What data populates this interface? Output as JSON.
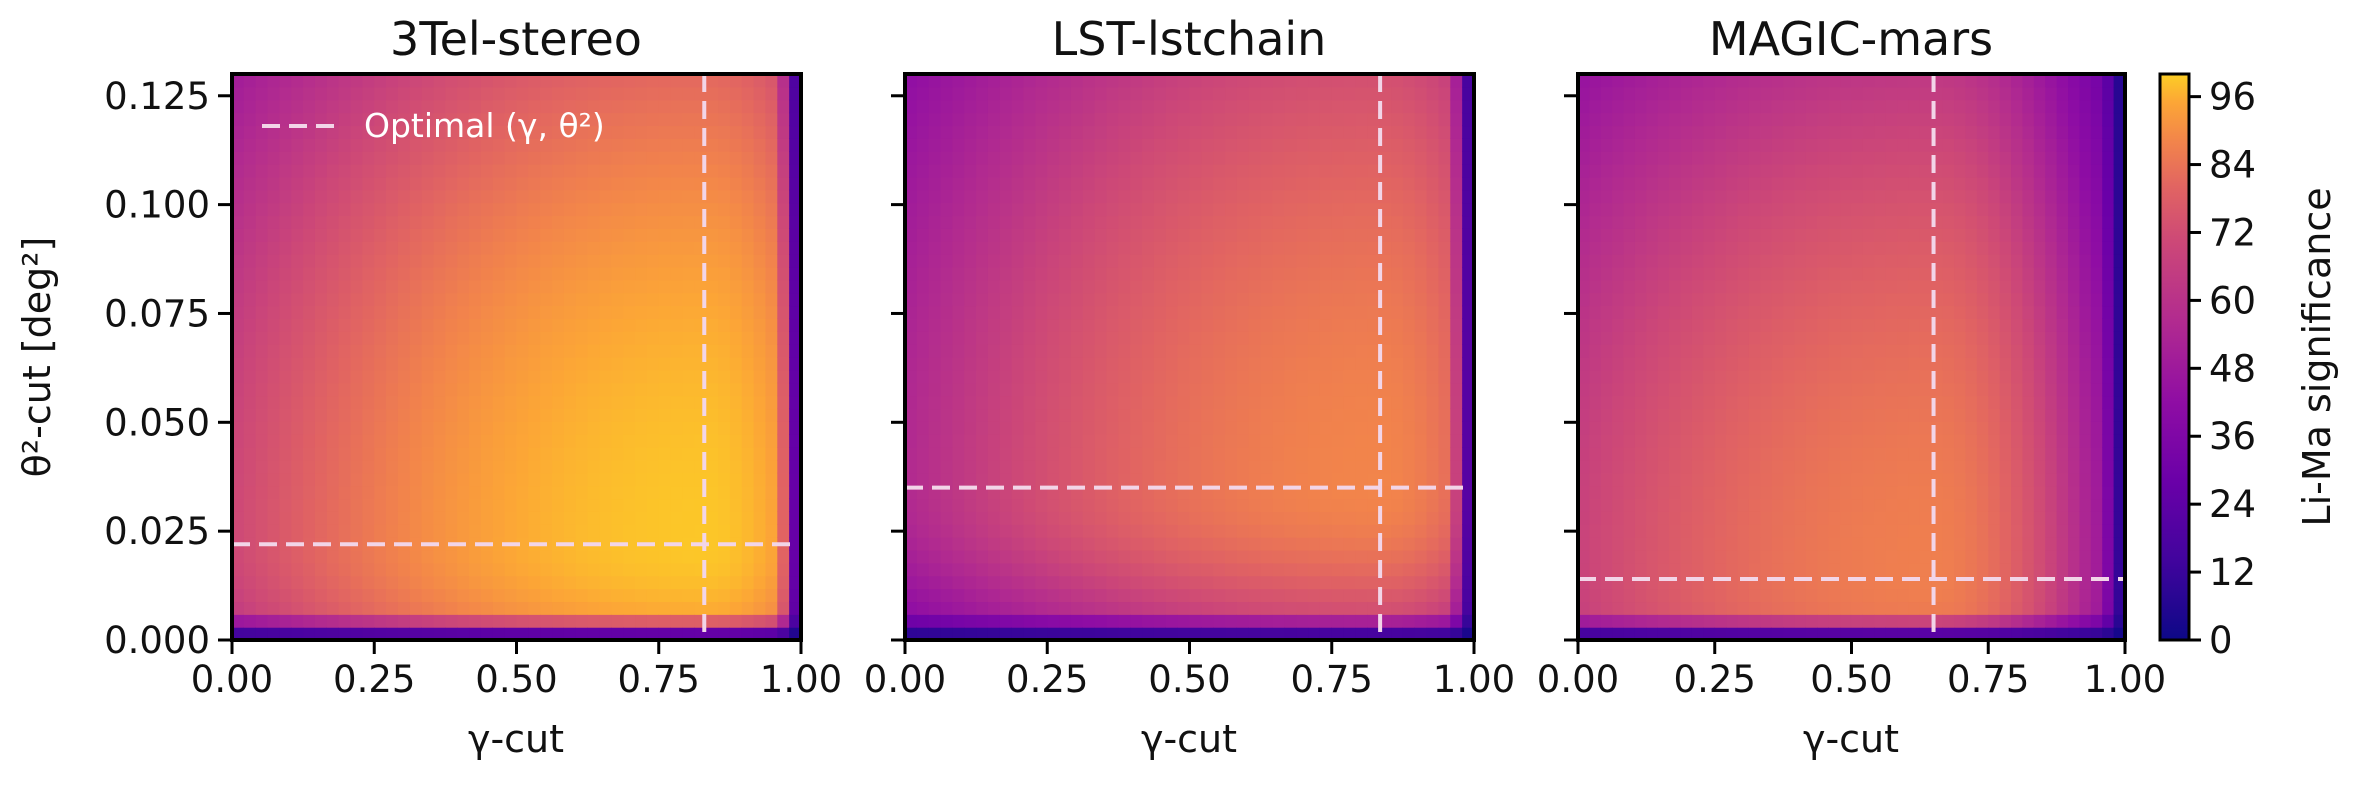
{
  "chart_data": [
    {
      "type": "heatmap",
      "title": "3Tel-stereo",
      "xlabel": "γ-cut",
      "ylabel": "θ²-cut [deg²]",
      "xlim": [
        0,
        1
      ],
      "ylim": [
        0,
        0.13
      ],
      "x_ticks": [
        "0.00",
        "0.25",
        "0.50",
        "0.75",
        "1.00"
      ],
      "y_ticks": [
        "0.000",
        "0.025",
        "0.050",
        "0.075",
        "0.100",
        "0.125"
      ],
      "optimal": {
        "gamma": 0.83,
        "theta2": 0.022
      },
      "peak_significance": 98,
      "legend": {
        "label": "Optimal (γ, θ²)",
        "placement": "top-left"
      }
    },
    {
      "type": "heatmap",
      "title": "LST-lstchain",
      "xlabel": "γ-cut",
      "xlim": [
        0,
        1
      ],
      "ylim": [
        0,
        0.13
      ],
      "x_ticks": [
        "0.00",
        "0.25",
        "0.50",
        "0.75",
        "1.00"
      ],
      "optimal": {
        "gamma": 0.835,
        "theta2": 0.035
      },
      "peak_significance": 78
    },
    {
      "type": "heatmap",
      "title": "MAGIC-mars",
      "xlabel": "γ-cut",
      "xlim": [
        0,
        1
      ],
      "ylim": [
        0,
        0.13
      ],
      "x_ticks": [
        "0.00",
        "0.25",
        "0.50",
        "0.75",
        "1.00"
      ],
      "optimal": {
        "gamma": 0.65,
        "theta2": 0.014
      },
      "peak_significance": 76
    }
  ],
  "colorbar": {
    "label": "Li-Ma significance",
    "range": [
      0,
      100
    ],
    "ticks": [
      "0",
      "12",
      "24",
      "36",
      "48",
      "60",
      "72",
      "84",
      "96"
    ],
    "colormap": "plasma"
  },
  "colors": {
    "optimal_line": "#f2d5e8"
  }
}
